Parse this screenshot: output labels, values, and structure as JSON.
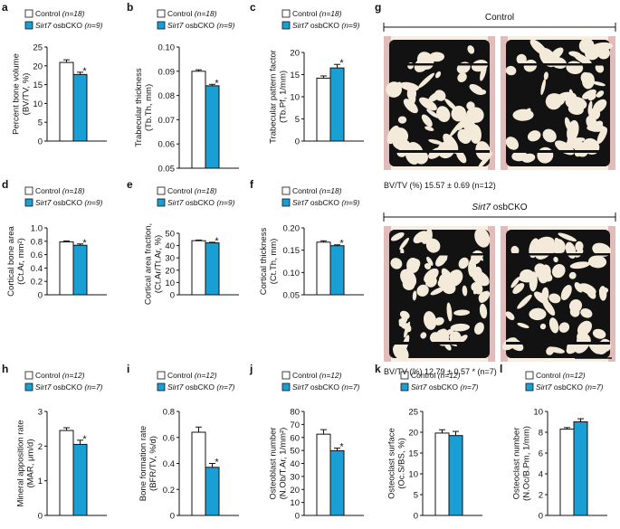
{
  "colors": {
    "control_fill": "#ffffff",
    "cko_fill": "#1a9fd4",
    "axis": "#111111",
    "marrow_bg": "#f3ead9",
    "trabecular": "#111111",
    "cartilage": "#d9a7a9"
  },
  "chart_data": [
    {
      "panel": "a",
      "type": "bar",
      "legend": [
        {
          "label": "Control",
          "n": "(n=18)",
          "style": "white"
        },
        {
          "italic": "Sirt7",
          "label": " osbCKO",
          "n": "(n=9)",
          "style": "blue"
        }
      ],
      "ylabel": [
        "Percent bone volume",
        "(BV/TV, %)"
      ],
      "ylim": [
        0,
        25
      ],
      "yticks": [
        "0",
        "5",
        "10",
        "15",
        "20",
        "25"
      ],
      "values": [
        20.9,
        17.7
      ],
      "errors": [
        0.7,
        0.6
      ],
      "significance": [
        "",
        "*"
      ]
    },
    {
      "panel": "b",
      "type": "bar",
      "legend": [
        {
          "label": "Control",
          "n": "(n=18)",
          "style": "white"
        },
        {
          "italic": "Sirt7",
          "label": " osbCKO",
          "n": "(n=9)",
          "style": "blue"
        }
      ],
      "ylabel": [
        "Trabecular thickness",
        "(Tb.Th, mm)"
      ],
      "ylim": [
        0.05,
        0.1
      ],
      "yticks": [
        "0.05",
        "0.06",
        "0.07",
        "0.08",
        "0.09",
        "0.10"
      ],
      "values": [
        0.09,
        0.084
      ],
      "errors": [
        0.0006,
        0.0006
      ],
      "significance": [
        "",
        "*"
      ]
    },
    {
      "panel": "c",
      "type": "bar",
      "legend": [
        {
          "label": "Control",
          "n": "(n=18)",
          "style": "white"
        },
        {
          "italic": "Sirt7",
          "label": " osbCKO",
          "n": "(n=9)",
          "style": "blue"
        }
      ],
      "ylabel": [
        "Trabecular pattern factor",
        "(Tb.Pf, 1/mm)"
      ],
      "ylim": [
        0,
        20
      ],
      "yticks": [
        "0",
        "5",
        "10",
        "15",
        "20"
      ],
      "values": [
        14.2,
        16.5
      ],
      "errors": [
        0.5,
        0.8
      ],
      "significance": [
        "",
        "*"
      ]
    },
    {
      "panel": "d",
      "type": "bar",
      "legend": [
        {
          "label": "Control",
          "n": "(n=18)",
          "style": "white"
        },
        {
          "italic": "Sirt7",
          "label": " osbCKO",
          "n": "(n=9)",
          "style": "blue"
        }
      ],
      "ylabel": [
        "Cortical bone area",
        "(Ct.Ar, mm²)"
      ],
      "ylim": [
        0,
        1.0
      ],
      "yticks": [
        "0",
        "0.2",
        "0.4",
        "0.6",
        "0.8",
        "1.0"
      ],
      "values": [
        0.79,
        0.74
      ],
      "errors": [
        0.015,
        0.02
      ],
      "significance": [
        "",
        "*"
      ]
    },
    {
      "panel": "e",
      "type": "bar",
      "legend": [
        {
          "label": "Control",
          "n": "(n=18)",
          "style": "white"
        },
        {
          "italic": "Sirt7",
          "label": " osbCKO",
          "n": "(n=9)",
          "style": "blue"
        }
      ],
      "ylabel": [
        "Cortical area fraction,",
        "(Ct.Ar/Tt.Ar, %)"
      ],
      "ylim": [
        0,
        50
      ],
      "yticks": [
        "0",
        "10",
        "20",
        "30",
        "40",
        "50"
      ],
      "values": [
        44.0,
        42.2
      ],
      "errors": [
        0.5,
        0.5
      ],
      "significance": [
        "",
        "*"
      ]
    },
    {
      "panel": "f",
      "type": "bar",
      "legend": [
        {
          "label": "Control",
          "n": "(n=18)",
          "style": "white"
        },
        {
          "italic": "Sirt7",
          "label": " osbCKO",
          "n": "(n=9)",
          "style": "blue"
        }
      ],
      "ylabel": [
        "Cortical thickness",
        "(Ct.Th, mm)"
      ],
      "ylim": [
        0.05,
        0.2
      ],
      "yticks": [
        "0.05",
        "0.10",
        "0.15",
        "0.20"
      ],
      "values": [
        0.168,
        0.16
      ],
      "errors": [
        0.003,
        0.002
      ],
      "significance": [
        "",
        "*"
      ]
    },
    {
      "panel": "h",
      "type": "bar",
      "legend": [
        {
          "label": "Control",
          "n": "(n=12)",
          "style": "white"
        },
        {
          "italic": "Sirt7",
          "label": " osbCKO",
          "n": "(n=7)",
          "style": "blue"
        }
      ],
      "ylabel": [
        "Mineral apposition rate",
        "(MAR, μm/d)"
      ],
      "ylim": [
        0,
        3
      ],
      "yticks": [
        "0",
        "1",
        "2",
        "3"
      ],
      "values": [
        2.45,
        2.05
      ],
      "errors": [
        0.08,
        0.12
      ],
      "significance": [
        "",
        "*"
      ]
    },
    {
      "panel": "i",
      "type": "bar",
      "legend": [
        {
          "label": "Control",
          "n": "(n=12)",
          "style": "white"
        },
        {
          "italic": "Sirt7",
          "label": " osbCKO",
          "n": "(n=7)",
          "style": "blue"
        }
      ],
      "ylabel": [
        "Bone formation rate",
        "(BFR/TV, %/d)"
      ],
      "ylim": [
        0,
        0.8
      ],
      "yticks": [
        "0",
        "0.2",
        "0.4",
        "0.6",
        "0.8"
      ],
      "values": [
        0.64,
        0.37
      ],
      "errors": [
        0.04,
        0.03
      ],
      "significance": [
        "",
        "*"
      ]
    },
    {
      "panel": "j",
      "type": "bar",
      "legend": [
        {
          "label": "Control",
          "n": "(n=12)",
          "style": "white"
        },
        {
          "italic": "Sirt7",
          "label": " osbCKO",
          "n": "(n=7)",
          "style": "blue"
        }
      ],
      "ylabel": [
        "Osteoblast number",
        "(N.Ob/T.Ar, 1/mm²)"
      ],
      "ylim": [
        0,
        80
      ],
      "yticks": [
        "0",
        "10",
        "20",
        "30",
        "40",
        "50",
        "60",
        "70",
        "80"
      ],
      "values": [
        62.5,
        49.8
      ],
      "errors": [
        3.5,
        2.0
      ],
      "significance": [
        "",
        "*"
      ]
    },
    {
      "panel": "k",
      "type": "bar",
      "legend": [
        {
          "label": "Control",
          "n": "(n=12)",
          "style": "white"
        },
        {
          "italic": "Sirt7",
          "label": " osbCKO",
          "n": "(n=7)",
          "style": "blue"
        }
      ],
      "ylabel": [
        "Osteoclast surface",
        "(Oc.S/BS, %)"
      ],
      "ylim": [
        0,
        25
      ],
      "yticks": [
        "0",
        "5",
        "10",
        "15",
        "20",
        "25"
      ],
      "values": [
        19.8,
        19.2
      ],
      "errors": [
        0.8,
        1.0
      ],
      "significance": [
        "",
        ""
      ]
    },
    {
      "panel": "l",
      "type": "bar",
      "legend": [
        {
          "label": "Control",
          "n": "(n=12)",
          "style": "white"
        },
        {
          "italic": "Sirt7",
          "label": " osbCKO",
          "n": "(n=7)",
          "style": "blue"
        }
      ],
      "ylabel": [
        "Osteoclast number",
        "(N.Oc/B.Pm, 1/mm)"
      ],
      "ylim": [
        0,
        10
      ],
      "yticks": [
        "0",
        "2",
        "4",
        "6",
        "8",
        "10"
      ],
      "values": [
        8.3,
        9.0
      ],
      "errors": [
        0.15,
        0.3
      ],
      "significance": [
        "",
        ""
      ]
    }
  ],
  "micrographs": {
    "panel": "g",
    "control_title": "Control",
    "control_caption": "BV/TV (%) 15.57 ± 0.69 (n=12)",
    "cko_title_italic": "Sirt7",
    "cko_title_rest": " osbCKO",
    "cko_caption": "BV/TV (%) 12.79 ± 0.57 * (n=7)"
  }
}
